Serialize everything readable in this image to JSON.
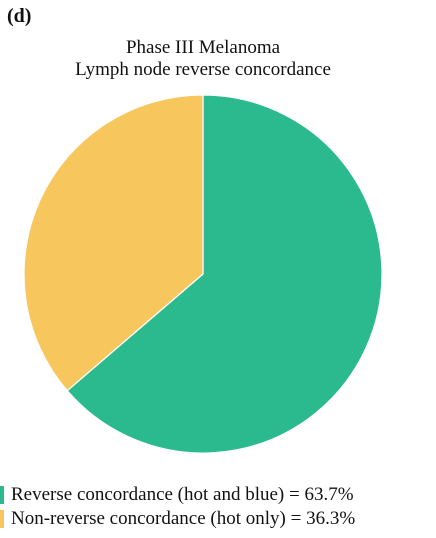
{
  "panel_label": "(d)",
  "colors": {
    "reverse": "#2bba8d",
    "non_reverse": "#f7c75d",
    "separator": "#ffffff"
  },
  "chart_data": {
    "type": "pie",
    "title": "Phase III Melanoma",
    "subtitle": "Lymph node reverse concordance",
    "slices": [
      {
        "label": "Reverse concordance (hot and blue) = 63.7%",
        "value": 63.7,
        "color": "#2bba8d"
      },
      {
        "label": "Non-reverse concordance  (hot only) = 36.3%",
        "value": 36.3,
        "color": "#f7c75d"
      }
    ],
    "start": "12 o'clock",
    "direction": "clockwise",
    "legend_position": "bottom-left"
  }
}
